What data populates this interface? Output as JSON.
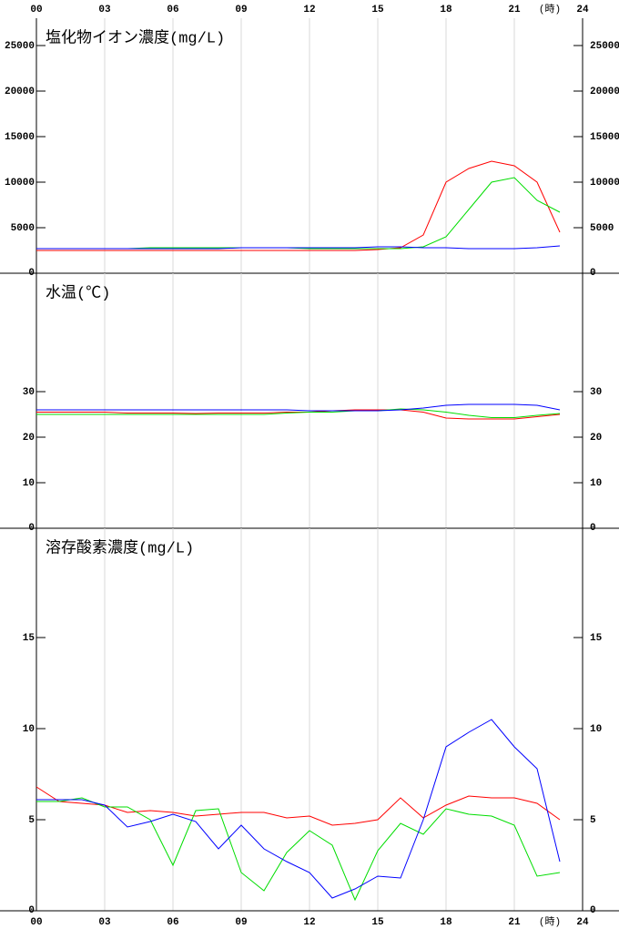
{
  "chart_data": [
    {
      "type": "line",
      "title": "塩化物イオン濃度(mg/L)",
      "x": [
        0,
        1,
        2,
        3,
        4,
        5,
        6,
        7,
        8,
        9,
        10,
        11,
        12,
        13,
        14,
        15,
        16,
        17,
        18,
        19,
        20,
        21,
        22,
        23
      ],
      "xlim": [
        0,
        24
      ],
      "xticks": [
        {
          "value": 0,
          "label": "00"
        },
        {
          "value": 3,
          "label": "03"
        },
        {
          "value": 6,
          "label": "06"
        },
        {
          "value": 9,
          "label": "09"
        },
        {
          "value": 12,
          "label": "12"
        },
        {
          "value": 15,
          "label": "15"
        },
        {
          "value": 18,
          "label": "18"
        },
        {
          "value": 21,
          "label": "21"
        },
        24
      ],
      "x_unit": "(時)",
      "ylim": [
        0,
        28000
      ],
      "yticks": [
        0,
        5000,
        10000,
        15000,
        20000,
        25000
      ],
      "series": [
        {
          "color": "#ff0000",
          "values": [
            2500,
            2500,
            2500,
            2500,
            2500,
            2500,
            2500,
            2500,
            2500,
            2500,
            2500,
            2500,
            2500,
            2500,
            2500,
            2600,
            2800,
            4200,
            10000,
            11500,
            12300,
            11800,
            10000,
            4500
          ]
        },
        {
          "color": "#00dd00",
          "values": [
            2700,
            2700,
            2700,
            2700,
            2700,
            2800,
            2800,
            2800,
            2800,
            2800,
            2800,
            2800,
            2700,
            2700,
            2700,
            2700,
            2700,
            2900,
            4000,
            7000,
            10000,
            10500,
            8000,
            6700
          ]
        },
        {
          "color": "#0000ff",
          "values": [
            2700,
            2700,
            2700,
            2700,
            2700,
            2700,
            2700,
            2700,
            2700,
            2800,
            2800,
            2800,
            2800,
            2800,
            2800,
            2900,
            2900,
            2800,
            2800,
            2700,
            2700,
            2700,
            2800,
            3000
          ]
        }
      ]
    },
    {
      "type": "line",
      "title": "水温(℃)",
      "x": [
        0,
        1,
        2,
        3,
        4,
        5,
        6,
        7,
        8,
        9,
        10,
        11,
        12,
        13,
        14,
        15,
        16,
        17,
        18,
        19,
        20,
        21,
        22,
        23
      ],
      "xlim": [
        0,
        24
      ],
      "xticks": [
        0,
        3,
        6,
        9,
        12,
        15,
        18,
        21,
        24
      ],
      "ylim": [
        0,
        56
      ],
      "yticks": [
        0,
        10,
        20,
        30
      ],
      "series": [
        {
          "color": "#ff0000",
          "values": [
            25.5,
            25.5,
            25.5,
            25.5,
            25.3,
            25.3,
            25.3,
            25.2,
            25.3,
            25.3,
            25.3,
            25.5,
            25.5,
            25.8,
            26,
            26,
            26,
            25.5,
            24.2,
            24,
            24,
            24,
            24.5,
            25
          ]
        },
        {
          "color": "#00dd00",
          "values": [
            25,
            25,
            25,
            25,
            25,
            25,
            25,
            25,
            25,
            25,
            25,
            25.3,
            25.5,
            25.5,
            25.8,
            25.8,
            26.2,
            26,
            25.5,
            24.8,
            24.3,
            24.3,
            24.8,
            25.2
          ]
        },
        {
          "color": "#0000ff",
          "values": [
            26,
            26,
            26,
            26,
            26,
            26,
            26,
            26,
            26,
            26,
            26,
            26,
            25.8,
            25.8,
            25.8,
            25.8,
            26,
            26.4,
            27,
            27.2,
            27.2,
            27.2,
            27,
            26
          ]
        }
      ]
    },
    {
      "type": "line",
      "title": "溶存酸素濃度(mg/L)",
      "x": [
        0,
        1,
        2,
        3,
        4,
        5,
        6,
        7,
        8,
        9,
        10,
        11,
        12,
        13,
        14,
        15,
        16,
        17,
        18,
        19,
        20,
        21,
        22,
        23
      ],
      "xlim": [
        0,
        24
      ],
      "xticks": [
        {
          "value": 0,
          "label": "00"
        },
        {
          "value": 3,
          "label": "03"
        },
        {
          "value": 6,
          "label": "06"
        },
        {
          "value": 9,
          "label": "09"
        },
        {
          "value": 12,
          "label": "12"
        },
        {
          "value": 15,
          "label": "15"
        },
        {
          "value": 18,
          "label": "18"
        },
        {
          "value": 21,
          "label": "21"
        },
        24
      ],
      "x_unit": "(時)",
      "ylim": [
        0,
        21
      ],
      "yticks": [
        0,
        5,
        10,
        15
      ],
      "series": [
        {
          "color": "#ff0000",
          "values": [
            6.8,
            6.0,
            5.9,
            5.8,
            5.4,
            5.5,
            5.4,
            5.2,
            5.3,
            5.4,
            5.4,
            5.1,
            5.2,
            4.7,
            4.8,
            5.0,
            6.2,
            5.1,
            5.8,
            6.3,
            6.2,
            6.2,
            5.9,
            5.0
          ]
        },
        {
          "color": "#00dd00",
          "values": [
            6.0,
            6.0,
            6.2,
            5.7,
            5.7,
            5.0,
            2.5,
            5.5,
            5.6,
            2.1,
            1.1,
            3.2,
            4.4,
            3.6,
            0.6,
            3.3,
            4.8,
            4.2,
            5.6,
            5.3,
            5.2,
            4.7,
            1.9,
            2.1
          ]
        },
        {
          "color": "#0000ff",
          "values": [
            6.1,
            6.1,
            6.1,
            5.8,
            4.6,
            4.9,
            5.3,
            4.9,
            3.4,
            4.7,
            3.4,
            2.7,
            2.1,
            0.7,
            1.2,
            1.9,
            1.8,
            5.0,
            9.0,
            9.8,
            10.5,
            9.0,
            7.8,
            2.7
          ]
        }
      ]
    }
  ]
}
